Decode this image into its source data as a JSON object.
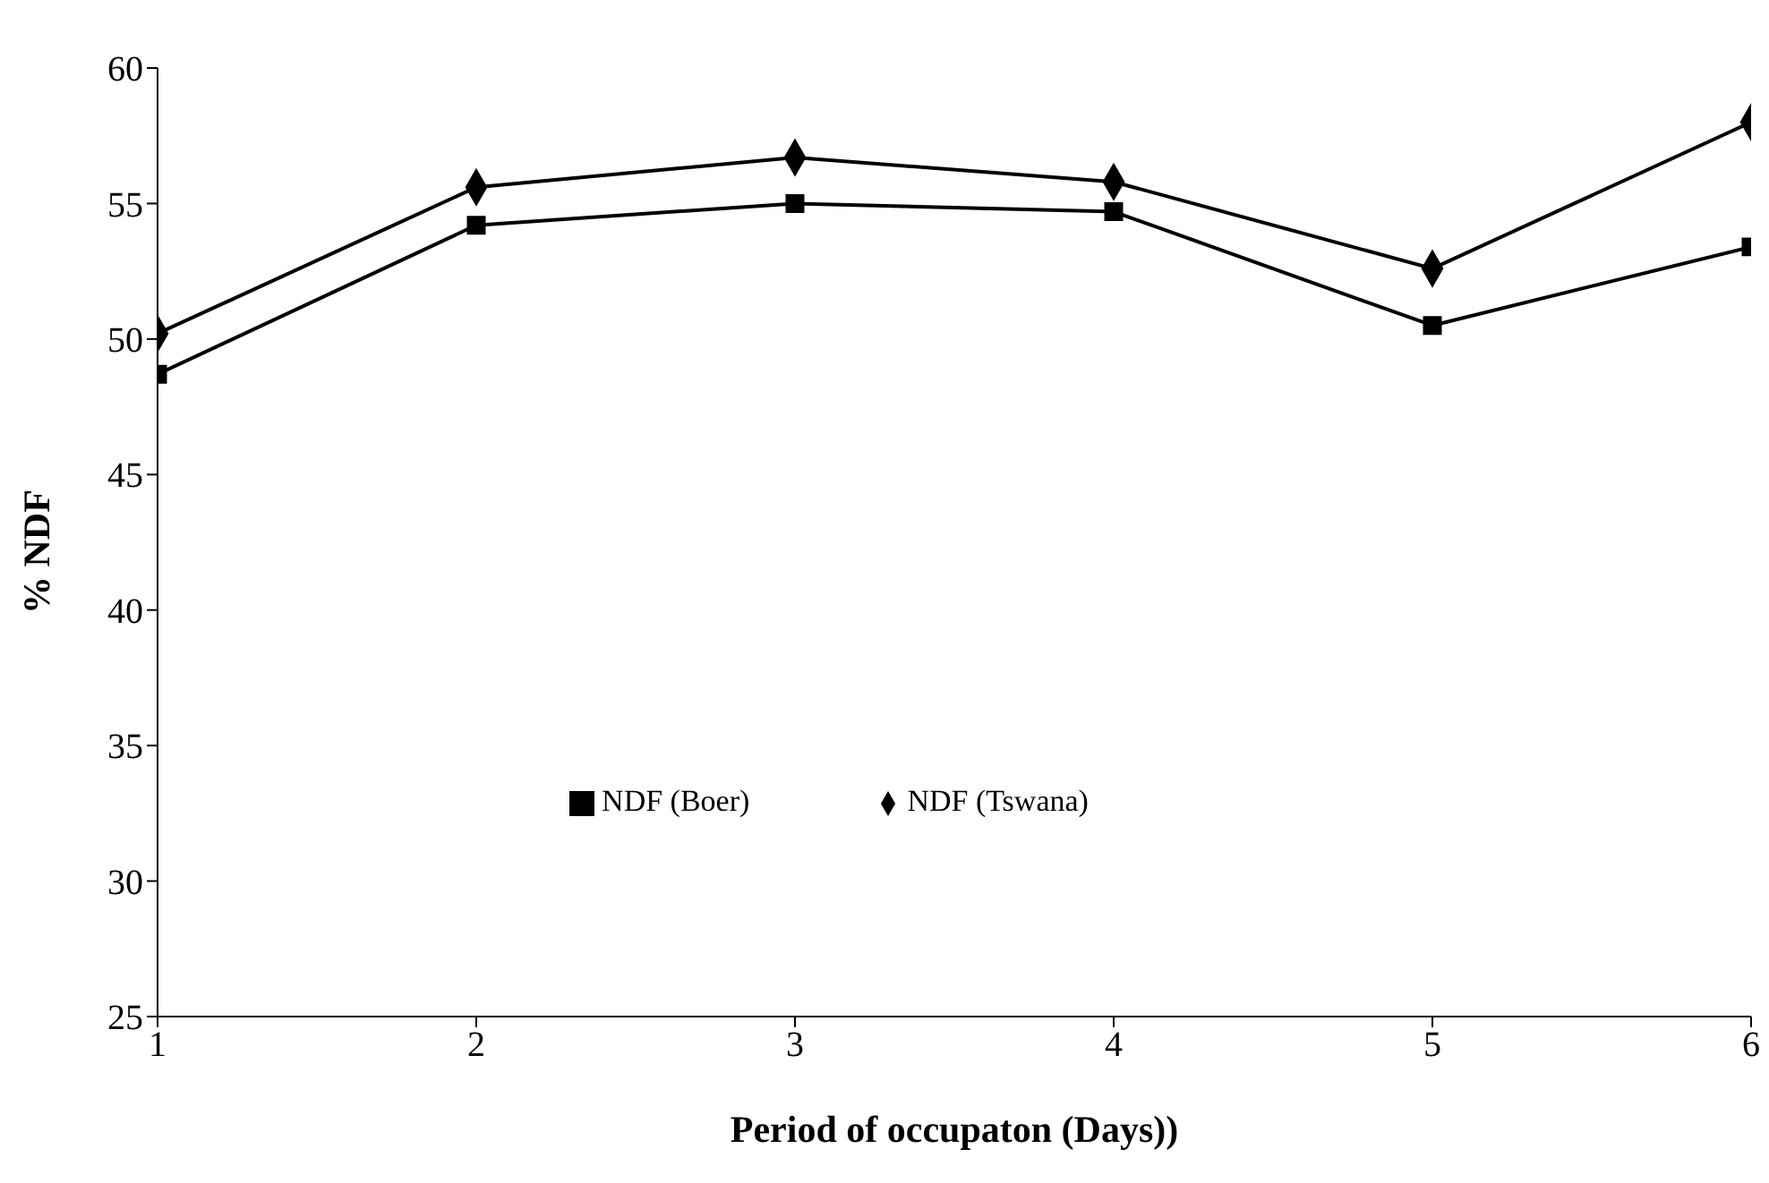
{
  "chart_data": {
    "type": "line",
    "xlabel": "Period of occupaton (Days))",
    "ylabel": "% NDF",
    "x": [
      1,
      2,
      3,
      4,
      5,
      6
    ],
    "series": [
      {
        "name": "NDF (Tswana)",
        "color": "#000000",
        "marker": "diamond",
        "values": [
          50.2,
          55.6,
          56.7,
          55.8,
          52.6,
          58.0
        ]
      },
      {
        "name": "NDF (Boer)",
        "color": "#000000",
        "marker": "square",
        "values": [
          48.7,
          54.2,
          55.0,
          54.7,
          50.5,
          53.4
        ]
      }
    ],
    "xlim": [
      1,
      6
    ],
    "xticks": [
      1,
      2,
      3,
      4,
      5,
      6
    ],
    "ylim": [
      25,
      60
    ],
    "yticks": [
      25,
      30,
      35,
      40,
      45,
      50,
      55,
      60
    ],
    "grid": false,
    "legend": "bottom",
    "line_style": "solid"
  }
}
